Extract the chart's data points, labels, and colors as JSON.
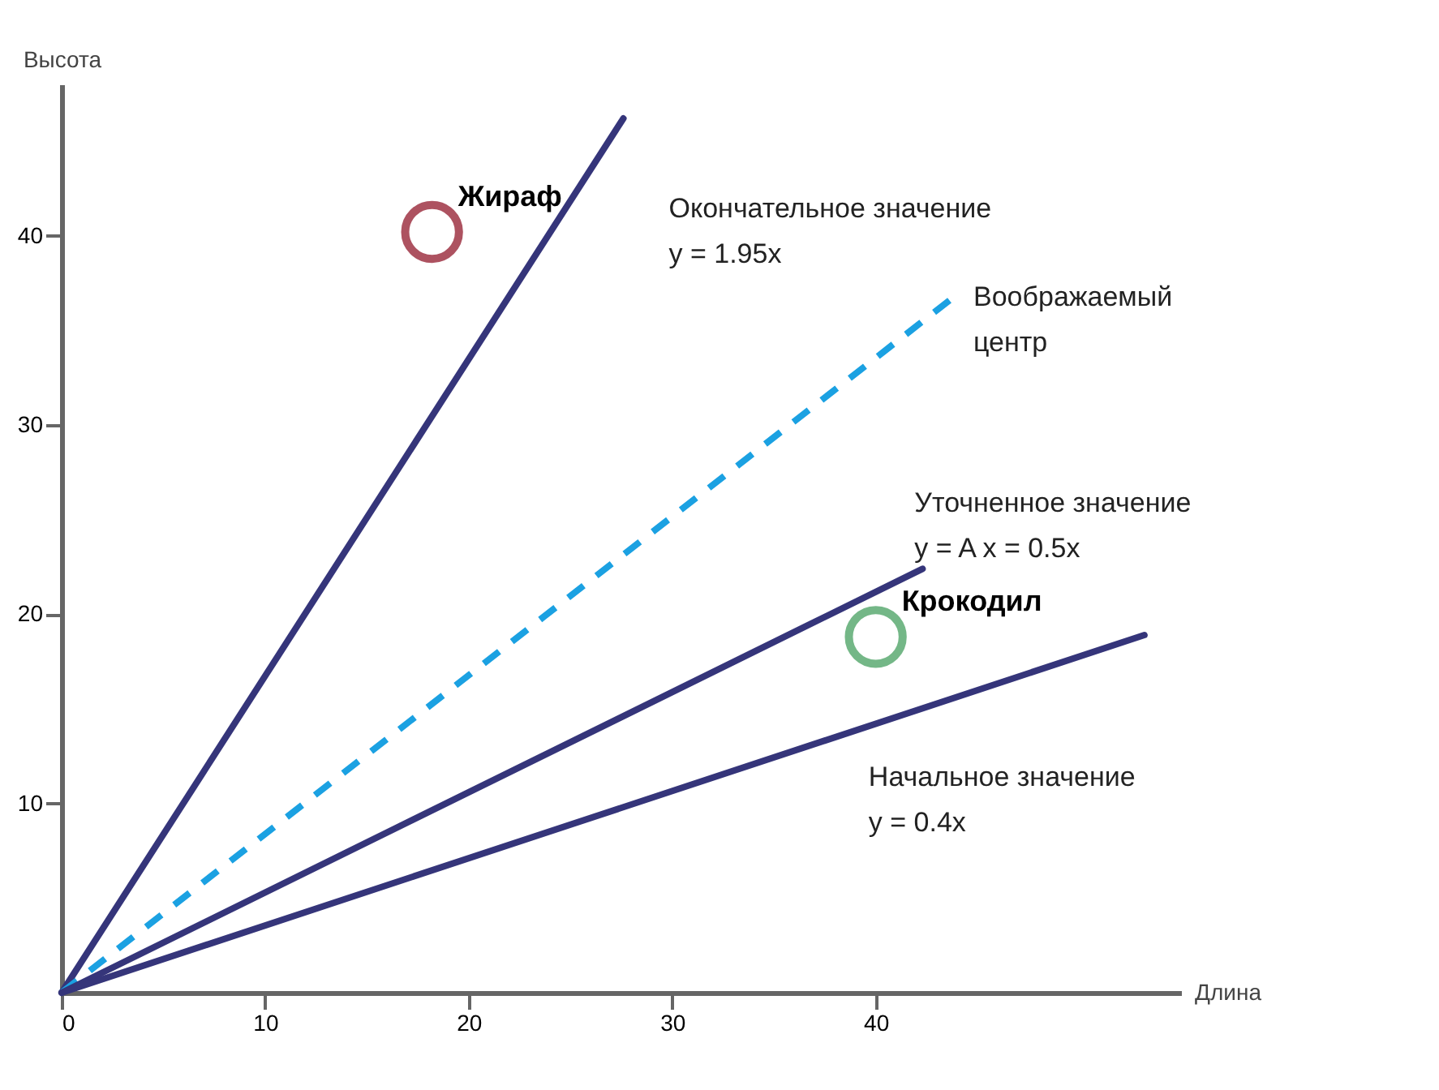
{
  "chart_data": {
    "type": "line",
    "xlabel": "Длина",
    "ylabel": "Высота",
    "xlim": [
      0,
      55
    ],
    "ylim": [
      0,
      48
    ],
    "xticks": [
      0,
      10,
      20,
      30,
      40
    ],
    "yticks": [
      10,
      20,
      30,
      40
    ],
    "grid": false,
    "series": [
      {
        "color": "#35357a",
        "line_style": "solid",
        "x": [
          0,
          27.6
        ],
        "values": [
          0,
          46.2
        ]
      },
      {
        "color": "#1ba1e2",
        "line_style": "dashed",
        "x": [
          0,
          44
        ],
        "values": [
          0,
          36.9
        ]
      },
      {
        "color": "#35357a",
        "line_style": "solid",
        "x": [
          0,
          42.3
        ],
        "values": [
          0,
          22.4
        ]
      },
      {
        "color": "#35357a",
        "line_style": "solid",
        "x": [
          0,
          53.2
        ],
        "values": [
          0,
          18.9
        ]
      },
      {
        "type": "scatter",
        "name": "Жираф",
        "color": "#8b0a1e",
        "marker": "circle",
        "x": [
          18.2
        ],
        "values": [
          40.2
        ]
      },
      {
        "type": "scatter",
        "name": "Крокодил",
        "color": "#3a9a55",
        "marker": "circle",
        "x": [
          40
        ],
        "values": [
          18.8
        ]
      }
    ],
    "annotations": [
      "Окончательное значение\ny = 1.95x",
      "Воображаемый\nцентр",
      "Уточненное значение\ny = A x = 0.5x",
      "Начальное значение\ny = 0.4x"
    ]
  }
}
